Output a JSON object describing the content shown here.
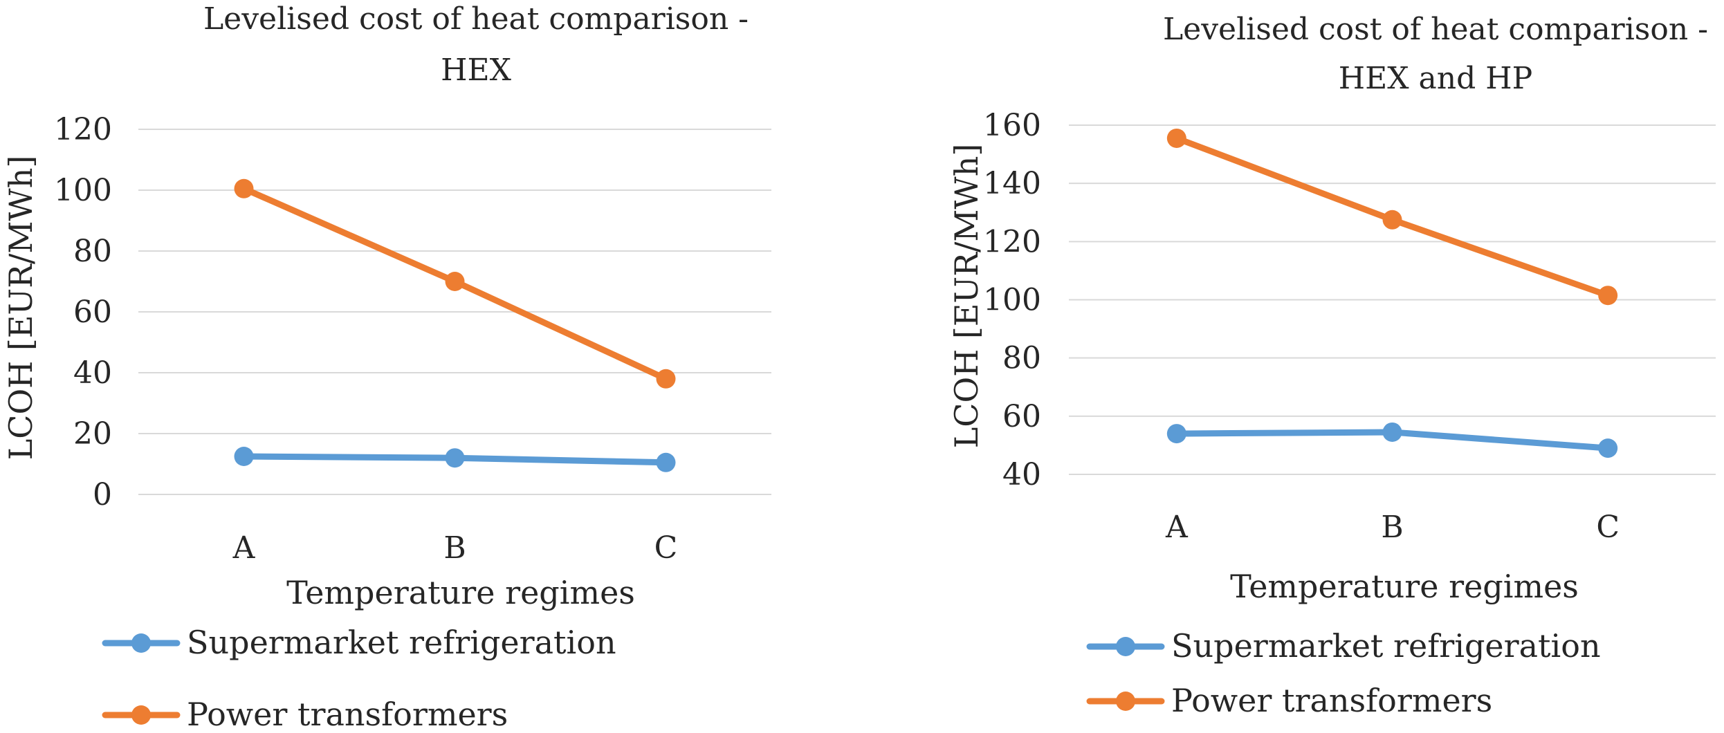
{
  "chart_data": [
    {
      "type": "line",
      "title": [
        "Levelised cost of heat comparison -",
        "HEX"
      ],
      "xlabel": "Temperature regimes",
      "ylabel": "LCOH [EUR/MWh]",
      "categories": [
        "A",
        "B",
        "C"
      ],
      "ylim": [
        0,
        120
      ],
      "yticks": [
        0,
        20,
        40,
        60,
        80,
        100,
        120
      ],
      "grid": true,
      "legend_position": "bottom-left",
      "series": [
        {
          "name": "Supermarket refrigeration",
          "color": "#5b9bd5",
          "values": [
            12.5,
            12,
            10.5
          ]
        },
        {
          "name": "Power transformers",
          "color": "#ed7d31",
          "values": [
            100.5,
            70,
            38
          ]
        }
      ]
    },
    {
      "type": "line",
      "title": [
        "Levelised cost of heat comparison -",
        "HEX and HP"
      ],
      "xlabel": "Temperature regimes",
      "ylabel": "LCOH [EUR/MWh]",
      "categories": [
        "A",
        "B",
        "C"
      ],
      "ylim": [
        40,
        160
      ],
      "yticks": [
        40,
        60,
        80,
        100,
        120,
        140,
        160
      ],
      "grid": true,
      "legend_position": "bottom-left",
      "series": [
        {
          "name": "Supermarket refrigeration",
          "color": "#5b9bd5",
          "values": [
            54,
            54.5,
            49
          ]
        },
        {
          "name": "Power transformers",
          "color": "#ed7d31",
          "values": [
            155.5,
            127.5,
            101.5
          ]
        }
      ]
    }
  ]
}
